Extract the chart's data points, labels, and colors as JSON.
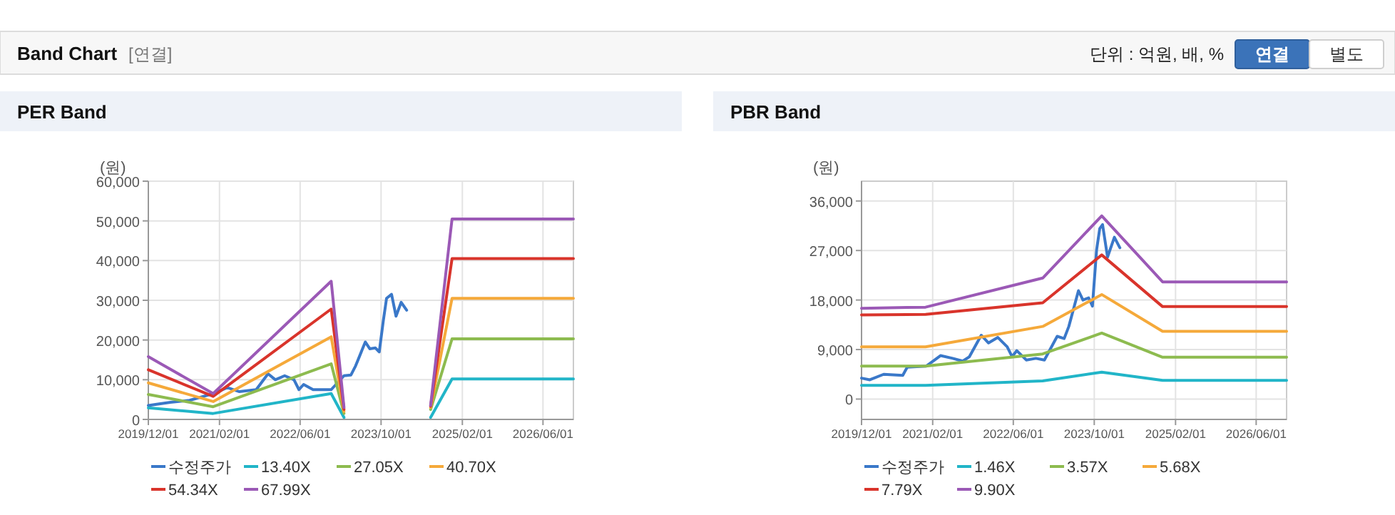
{
  "chart_data": [
    {
      "type": "other",
      "title": "Band Chart",
      "subtitle": "[연결]",
      "annotations": [
        "단위 : 억원, 배, %",
        "연결",
        "별도"
      ]
    },
    {
      "type": "line",
      "title": "PER Band",
      "ylabel": "(원)",
      "xlim": [
        "2019-12-01",
        "2026-12-01"
      ],
      "xticks": [
        {
          "value": "2019-12-01",
          "label": "2019/12/01"
        },
        {
          "value": "2021-02-01",
          "label": "2021/02/01"
        },
        {
          "value": "2022-06-01",
          "label": "2022/06/01"
        },
        {
          "value": "2023-10-01",
          "label": "2023/10/01"
        },
        {
          "value": "2025-02-01",
          "label": "2025/02/01"
        },
        {
          "value": "2026-06-01",
          "label": "2026/06/01"
        }
      ],
      "ylim": [
        0,
        60000
      ],
      "yticks": [
        0,
        {
          "value": 10000,
          "label": "10,000"
        },
        {
          "value": 20000,
          "label": "20,000"
        },
        {
          "value": 30000,
          "label": "30,000"
        },
        {
          "value": 40000,
          "label": "40,000"
        },
        {
          "value": 50000,
          "label": "50,000"
        },
        {
          "value": 60000,
          "label": "60,000"
        }
      ],
      "grid": true,
      "legend": "bottom",
      "marker": "none",
      "line_style": "solid",
      "series": [
        {
          "name": "수정주가",
          "color": "#3a78c9",
          "x": [
            "2019-12-01",
            "2020-01-20",
            "2020-04-12",
            "2020-08-05",
            "2020-12-25",
            "2021-03-20",
            "2021-06-01",
            "2021-09-10",
            "2021-11-20",
            "2022-01-03",
            "2022-02-28",
            "2022-04-25",
            "2022-05-25",
            "2022-06-22",
            "2022-08-18",
            "2022-10-15",
            "2022-12-05",
            "2023-02-20",
            "2023-04-03",
            "2023-05-01",
            "2023-06-28",
            "2023-07-25",
            "2023-08-28",
            "2023-09-20",
            "2023-10-15",
            "2023-11-03",
            "2023-12-03",
            "2023-12-30",
            "2024-01-30",
            "2024-03-03"
          ],
          "values": [
            3500,
            3800,
            4300,
            4800,
            6500,
            8000,
            7000,
            7500,
            11500,
            10000,
            11000,
            10000,
            7500,
            8800,
            7500,
            7500,
            7500,
            11000,
            11200,
            13500,
            19500,
            17800,
            18000,
            17000,
            25000,
            30500,
            31500,
            26000,
            29500,
            27500
          ]
        },
        {
          "name": "13.40X",
          "color": "#21b5c8",
          "x": [
            "2019-12-01",
            "2020-12-25",
            "2022-12-05",
            "2023-02-20",
            "2023-11-01",
            "2024-07-25",
            "2024-12-01",
            "2026-12-01"
          ],
          "values": [
            2900,
            1500,
            6500,
            500,
            null,
            500,
            10200,
            10200
          ]
        },
        {
          "name": "27.05X",
          "color": "#8dbb4f",
          "x": [
            "2019-12-01",
            "2020-12-25",
            "2022-12-05",
            "2023-02-20",
            "2023-11-01",
            "2024-07-25",
            "2024-12-01",
            "2026-12-01"
          ],
          "values": [
            6300,
            3200,
            14000,
            1500,
            null,
            2500,
            20300,
            20300
          ]
        },
        {
          "name": "40.70X",
          "color": "#f5a93a",
          "x": [
            "2019-12-01",
            "2020-12-25",
            "2022-12-05",
            "2023-02-20",
            "2023-11-01",
            "2024-07-25",
            "2024-12-01",
            "2026-12-01"
          ],
          "values": [
            9200,
            4500,
            20800,
            2000,
            null,
            3000,
            30500,
            30500
          ]
        },
        {
          "name": "54.34X",
          "color": "#d9342b",
          "x": [
            "2019-12-01",
            "2020-12-25",
            "2022-12-05",
            "2023-02-20",
            "2023-11-01",
            "2024-07-25",
            "2024-12-01",
            "2026-12-01"
          ],
          "values": [
            12500,
            5800,
            27800,
            2500,
            null,
            3300,
            40500,
            40500
          ]
        },
        {
          "name": "67.99X",
          "color": "#9b59b6",
          "x": [
            "2019-12-01",
            "2020-12-25",
            "2022-12-05",
            "2023-02-20",
            "2023-11-01",
            "2024-07-25",
            "2024-12-01",
            "2026-12-01"
          ],
          "values": [
            15800,
            6500,
            34800,
            3000,
            null,
            3500,
            50500,
            50500
          ]
        }
      ]
    },
    {
      "type": "line",
      "title": "PBR Band",
      "ylabel": "(원)",
      "xlim": [
        "2019-12-01",
        "2026-12-01"
      ],
      "xticks": [
        {
          "value": "2019-12-01",
          "label": "2019/12/01"
        },
        {
          "value": "2021-02-01",
          "label": "2021/02/01"
        },
        {
          "value": "2022-06-01",
          "label": "2022/06/01"
        },
        {
          "value": "2023-10-01",
          "label": "2023/10/01"
        },
        {
          "value": "2025-02-01",
          "label": "2025/02/01"
        },
        {
          "value": "2026-06-01",
          "label": "2026/06/01"
        }
      ],
      "ylim": [
        -3700,
        39600
      ],
      "yticks": [
        0,
        {
          "value": 9000,
          "label": "9,000"
        },
        {
          "value": 18000,
          "label": "18,000"
        },
        {
          "value": 27000,
          "label": "27,000"
        },
        {
          "value": 36000,
          "label": "36,000"
        }
      ],
      "grid": true,
      "legend": "bottom",
      "marker": "none",
      "line_style": "solid",
      "series": [
        {
          "name": "수정주가",
          "color": "#3a78c9",
          "x": [
            "2019-12-01",
            "2020-01-20",
            "2020-04-12",
            "2020-08-05",
            "2020-09-01",
            "2020-12-25",
            "2021-03-20",
            "2021-06-01",
            "2021-08-01",
            "2021-09-10",
            "2021-11-20",
            "2022-01-03",
            "2022-02-28",
            "2022-04-25",
            "2022-05-25",
            "2022-06-22",
            "2022-08-18",
            "2022-10-15",
            "2022-12-05",
            "2023-02-20",
            "2023-04-03",
            "2023-05-01",
            "2023-06-28",
            "2023-07-25",
            "2023-08-28",
            "2023-09-20",
            "2023-10-15",
            "2023-11-03",
            "2023-11-20",
            "2023-12-20",
            "2024-01-30",
            "2024-03-03"
          ],
          "values": [
            3800,
            3500,
            4500,
            4300,
            5800,
            6000,
            7900,
            7400,
            6900,
            7700,
            11600,
            10200,
            11200,
            9500,
            7700,
            8800,
            7100,
            7400,
            7100,
            11400,
            11000,
            13200,
            19700,
            18000,
            18400,
            16900,
            27100,
            31000,
            31700,
            25800,
            29400,
            27500
          ]
        },
        {
          "name": "1.46X",
          "color": "#21b5c8",
          "x": [
            "2019-12-01",
            "2020-12-20",
            "2022-11-25",
            "2023-11-15",
            "2024-11-15",
            "2026-12-01"
          ],
          "values": [
            2500,
            2500,
            3300,
            4900,
            3400,
            3400
          ]
        },
        {
          "name": "3.57X",
          "color": "#8dbb4f",
          "x": [
            "2019-12-01",
            "2020-12-20",
            "2022-11-25",
            "2023-11-15",
            "2024-11-15",
            "2026-12-01"
          ],
          "values": [
            6000,
            6000,
            8200,
            12000,
            7600,
            7600
          ]
        },
        {
          "name": "5.68X",
          "color": "#f5a93a",
          "x": [
            "2019-12-01",
            "2020-12-20",
            "2022-11-25",
            "2023-11-15",
            "2024-11-15",
            "2026-12-01"
          ],
          "values": [
            9500,
            9500,
            13200,
            19000,
            12300,
            12300
          ]
        },
        {
          "name": "7.79X",
          "color": "#d9342b",
          "x": [
            "2019-12-01",
            "2020-12-20",
            "2022-11-25",
            "2023-11-15",
            "2024-11-15",
            "2026-12-01"
          ],
          "values": [
            15300,
            15400,
            17500,
            26200,
            16800,
            16800
          ]
        },
        {
          "name": "9.90X",
          "color": "#9b59b6",
          "x": [
            "2019-12-01",
            "2020-12-20",
            "2022-11-25",
            "2023-11-15",
            "2024-11-15",
            "2026-12-01"
          ],
          "values": [
            16500,
            16700,
            22000,
            33300,
            21300,
            21300
          ]
        }
      ]
    }
  ]
}
